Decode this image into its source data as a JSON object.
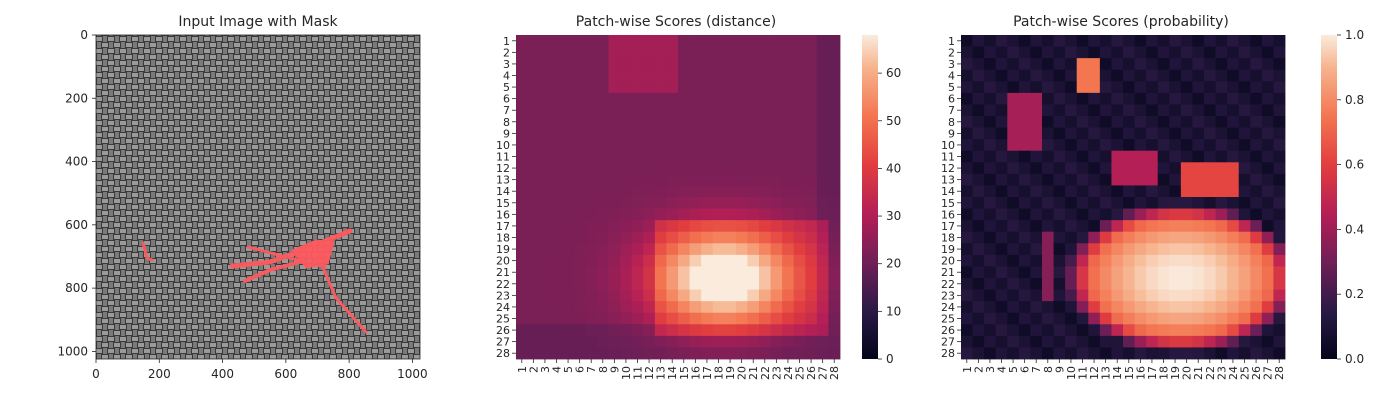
{
  "chart_data": [
    {
      "type": "image",
      "title": "Input Image with Mask",
      "xlim": [
        0,
        1024
      ],
      "ylim": [
        1024,
        0
      ],
      "xticks": [
        "0",
        "200",
        "400",
        "600",
        "800",
        "1000"
      ],
      "yticks": [
        "0",
        "200",
        "400",
        "600",
        "800",
        "1000"
      ],
      "mask_color": "#ff5a5f",
      "texture": "gray woven burlap fabric"
    },
    {
      "type": "heatmap",
      "title": "Patch-wise Scores (distance)",
      "rows": 28,
      "cols": 28,
      "xticks": [
        "1",
        "2",
        "3",
        "4",
        "5",
        "6",
        "7",
        "8",
        "9",
        "10",
        "11",
        "12",
        "13",
        "14",
        "15",
        "16",
        "17",
        "18",
        "19",
        "20",
        "21",
        "22",
        "23",
        "24",
        "25",
        "26",
        "27",
        "28"
      ],
      "yticks": [
        "1",
        "2",
        "3",
        "4",
        "5",
        "6",
        "7",
        "8",
        "9",
        "10",
        "11",
        "12",
        "13",
        "14",
        "15",
        "16",
        "17",
        "18",
        "19",
        "20",
        "21",
        "22",
        "23",
        "24",
        "25",
        "26",
        "27",
        "28"
      ],
      "colorbar": {
        "min": 0,
        "max": 68,
        "ticks": [
          "0",
          "10",
          "20",
          "30",
          "40",
          "50",
          "60"
        ],
        "tick_values": [
          0,
          10,
          20,
          30,
          40,
          50,
          60
        ]
      },
      "colormap": "rocket",
      "hotspot": {
        "row_range": [
          17,
          26
        ],
        "col_range": [
          13,
          27
        ],
        "peak_row": 21.5,
        "peak_col": 18.5,
        "peak": 68,
        "baseline": 22
      }
    },
    {
      "type": "heatmap",
      "title": "Patch-wise Scores (probability)",
      "rows": 28,
      "cols": 28,
      "xticks": [
        "1",
        "2",
        "3",
        "4",
        "5",
        "6",
        "7",
        "8",
        "9",
        "10",
        "11",
        "12",
        "13",
        "14",
        "15",
        "16",
        "17",
        "18",
        "19",
        "20",
        "21",
        "22",
        "23",
        "24",
        "25",
        "26",
        "27",
        "28"
      ],
      "yticks": [
        "1",
        "2",
        "3",
        "4",
        "5",
        "6",
        "7",
        "8",
        "9",
        "10",
        "11",
        "12",
        "13",
        "14",
        "15",
        "16",
        "17",
        "18",
        "19",
        "20",
        "21",
        "22",
        "23",
        "24",
        "25",
        "26",
        "27",
        "28"
      ],
      "colorbar": {
        "min": 0.0,
        "max": 1.0,
        "ticks": [
          "0.0",
          "0.2",
          "0.4",
          "0.6",
          "0.8",
          "1.0"
        ],
        "tick_values": [
          0,
          0.2,
          0.4,
          0.6,
          0.8,
          1.0
        ]
      },
      "colormap": "rocket",
      "hotspot": {
        "row_range": [
          14,
          27
        ],
        "col_range": [
          10,
          27
        ],
        "peak": 1.0,
        "baseline": 0.05
      }
    }
  ]
}
